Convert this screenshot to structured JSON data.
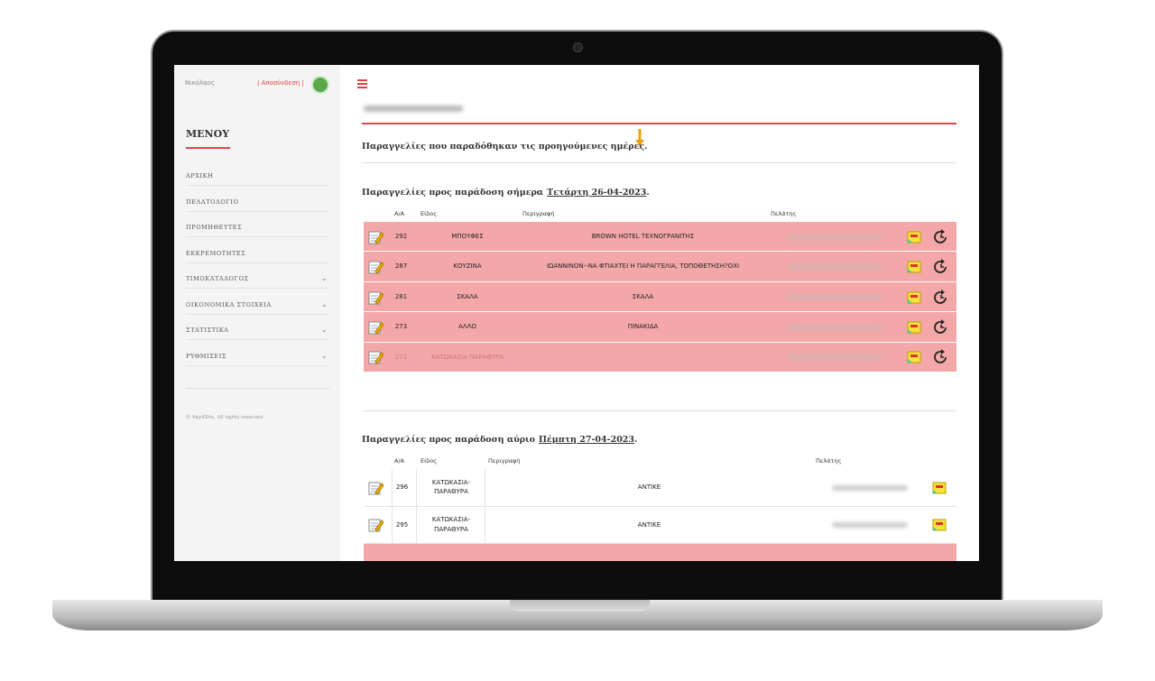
{
  "sidebar": {
    "user": "Νικόλαος",
    "logout": "| Αποσύνδεση |",
    "menu_title": "ΜΕΝΟΥ",
    "menu": [
      {
        "label": "ΑΡΧΙΚΗ",
        "submenu": false
      },
      {
        "label": "ΠΕΛΑΤΟΛΟΓΙΟ",
        "submenu": false
      },
      {
        "label": "ΠΡΟΜΗΘΕΥΤΕΣ",
        "submenu": false
      },
      {
        "label": "ΕΚΚΡΕΜΟΤΗΤΕΣ",
        "submenu": false
      },
      {
        "label": "ΤΙΜΟΚΑΤΑΛΟΓΟΣ",
        "submenu": true
      },
      {
        "label": "ΟΙΚΟΝΟΜΙΚΑ ΣΤΟΙΧΕΙΑ",
        "submenu": true
      },
      {
        "label": "ΣΤΑΤΙΣΤΙΚΑ",
        "submenu": true
      },
      {
        "label": "ΡΥΘΜΙΣΕΙΣ",
        "submenu": true
      }
    ],
    "footer": "© Key4Site. All rights reserved."
  },
  "main": {
    "delivered": "Παραγγελίες που παραδόθηκαν τις προηγούμενες ημέρες.",
    "today": {
      "title": "Παραγγελίες προς παράδοση σήμερα",
      "date": "Τετάρτη 26-04-2023",
      "end": ".",
      "headers": [
        "Α/Α",
        "Είδος",
        "Περιγραφή",
        "Πελάτης"
      ],
      "rows": [
        {
          "id": 292,
          "kind": "ΜΠΟΥΦΕΣ",
          "description": "BROWN HOTEL ΤΕΧΝΟΓΡΑΝΙΤΗΣ",
          "highlight": true
        },
        {
          "id": 287,
          "kind": "ΚΟΥΖΙΝΑ",
          "description": "ΙΩΑΝΝΙΝΟΝ--ΝΑ ΦΤΙΑΧΤΕΙ Η ΠΑΡΑΓΓΕΛΙΑ, ΤΟΠΟΘΕΤΗΣΗ?ΟΧΙ",
          "highlight": true
        },
        {
          "id": 281,
          "kind": "ΣΚΑΛΑ",
          "description": "ΣΚΑΛΑ",
          "highlight": true
        },
        {
          "id": 273,
          "kind": "ΑΛΛΟ",
          "description": "ΠΙΝΑΚΙΔΑ",
          "highlight": true
        },
        {
          "id": 272,
          "kind": "ΚΑΤΩΚΑΣΙΑ-ΠΑΡΑΘΥΡΑ",
          "highlight": true,
          "faded": true
        }
      ]
    },
    "tomorrow": {
      "title": "Παραγγελίες προς παράδοση αύριο",
      "date": "Πέμπτη 27-04-2023",
      "end": ".",
      "headers": [
        "Α/Α",
        "Είδος",
        "Περιγραφή",
        "Πελάτης"
      ],
      "rows": [
        {
          "id": 296,
          "kind": "ΚΑΤΩΚΑΣΙΑ-ΠΑΡΑΘΥΡΑ",
          "description": "ΑΝΤΙΚΕ",
          "highlight": false
        },
        {
          "id": 295,
          "kind": "ΚΑΤΩΚΑΣΙΑ-ΠΑΡΑΘΥΡΑ",
          "description": "ΑΝΤΙΚΕ",
          "highlight": false
        }
      ]
    }
  }
}
